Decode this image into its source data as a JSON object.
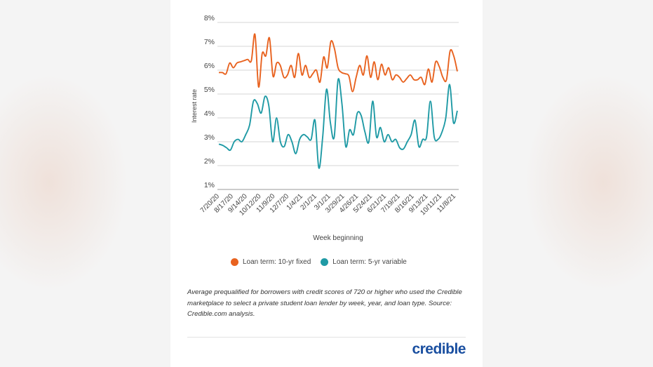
{
  "colors": {
    "fixed": "#e8621f",
    "variable": "#1f9aa5",
    "grid": "#d4d4d4",
    "text": "#444444",
    "brand": "#1a4fa0"
  },
  "legend": {
    "fixed_label": "Loan term: 10-yr fixed",
    "variable_label": "Loan term: 5-yr variable"
  },
  "note": "Average prequalified for borrowers with credit scores of 720 or higher who used the Credible marketplace to select a private student loan lender by week, year, and loan type. Source: Credible.com analysis.",
  "brand": {
    "logo_text": "credible"
  },
  "chart_data": {
    "type": "line",
    "xlabel": "Week beginning",
    "ylabel": "Interest rate",
    "ylim": [
      1,
      8
    ],
    "y_ticks": [
      "1%",
      "2%",
      "3%",
      "4%",
      "5%",
      "6%",
      "7%",
      "8%"
    ],
    "tick_labels": [
      "7/20/20",
      "8/17/20",
      "9/14/20",
      "10/12/20",
      "11/9/20",
      "12/7/20",
      "1/4/21",
      "2/1/21",
      "3/1/21",
      "3/29/21",
      "4/26/21",
      "5/24/21",
      "6/21/21",
      "7/19/21",
      "8/16/21",
      "9/13/21",
      "10/11/21",
      "11/8/21"
    ],
    "grid": "horizontal",
    "legend_position": "bottom",
    "series": [
      {
        "name": "Loan term: 10-yr fixed",
        "values": [
          5.9,
          5.9,
          5.85,
          6.3,
          6.1,
          6.3,
          6.35,
          6.4,
          6.45,
          6.4,
          7.5,
          5.3,
          6.7,
          6.6,
          7.35,
          5.75,
          6.3,
          6.2,
          5.7,
          5.8,
          6.2,
          5.7,
          6.7,
          5.8,
          6.2,
          5.7,
          5.85,
          6.0,
          5.5,
          6.55,
          6.1,
          7.2,
          6.9,
          6.1,
          5.9,
          5.85,
          5.75,
          5.1,
          5.7,
          6.2,
          5.8,
          6.6,
          5.7,
          6.35,
          5.6,
          6.25,
          5.8,
          6.1,
          5.6,
          5.8,
          5.7,
          5.5,
          5.65,
          5.8,
          5.6,
          5.6,
          5.7,
          5.4,
          6.05,
          5.5,
          6.35,
          6.15,
          5.7,
          5.6,
          6.8,
          6.6,
          5.95
        ]
      },
      {
        "name": "Loan term: 5-yr variable",
        "values": [
          2.9,
          2.85,
          2.75,
          2.65,
          3.0,
          3.1,
          3.0,
          3.3,
          3.7,
          4.7,
          4.6,
          4.2,
          4.9,
          4.5,
          3.0,
          4.0,
          3.0,
          2.8,
          3.3,
          3.0,
          2.5,
          3.1,
          3.3,
          3.2,
          3.1,
          3.9,
          1.9,
          3.2,
          5.2,
          3.8,
          3.2,
          5.6,
          4.6,
          2.8,
          3.5,
          3.3,
          4.2,
          4.1,
          3.4,
          3.0,
          4.7,
          3.2,
          3.6,
          3.0,
          3.3,
          3.0,
          3.1,
          2.75,
          2.7,
          3.0,
          3.3,
          3.9,
          2.8,
          3.1,
          3.2,
          4.7,
          3.2,
          3.1,
          3.4,
          4.0,
          5.4,
          3.8,
          4.3
        ]
      }
    ]
  }
}
